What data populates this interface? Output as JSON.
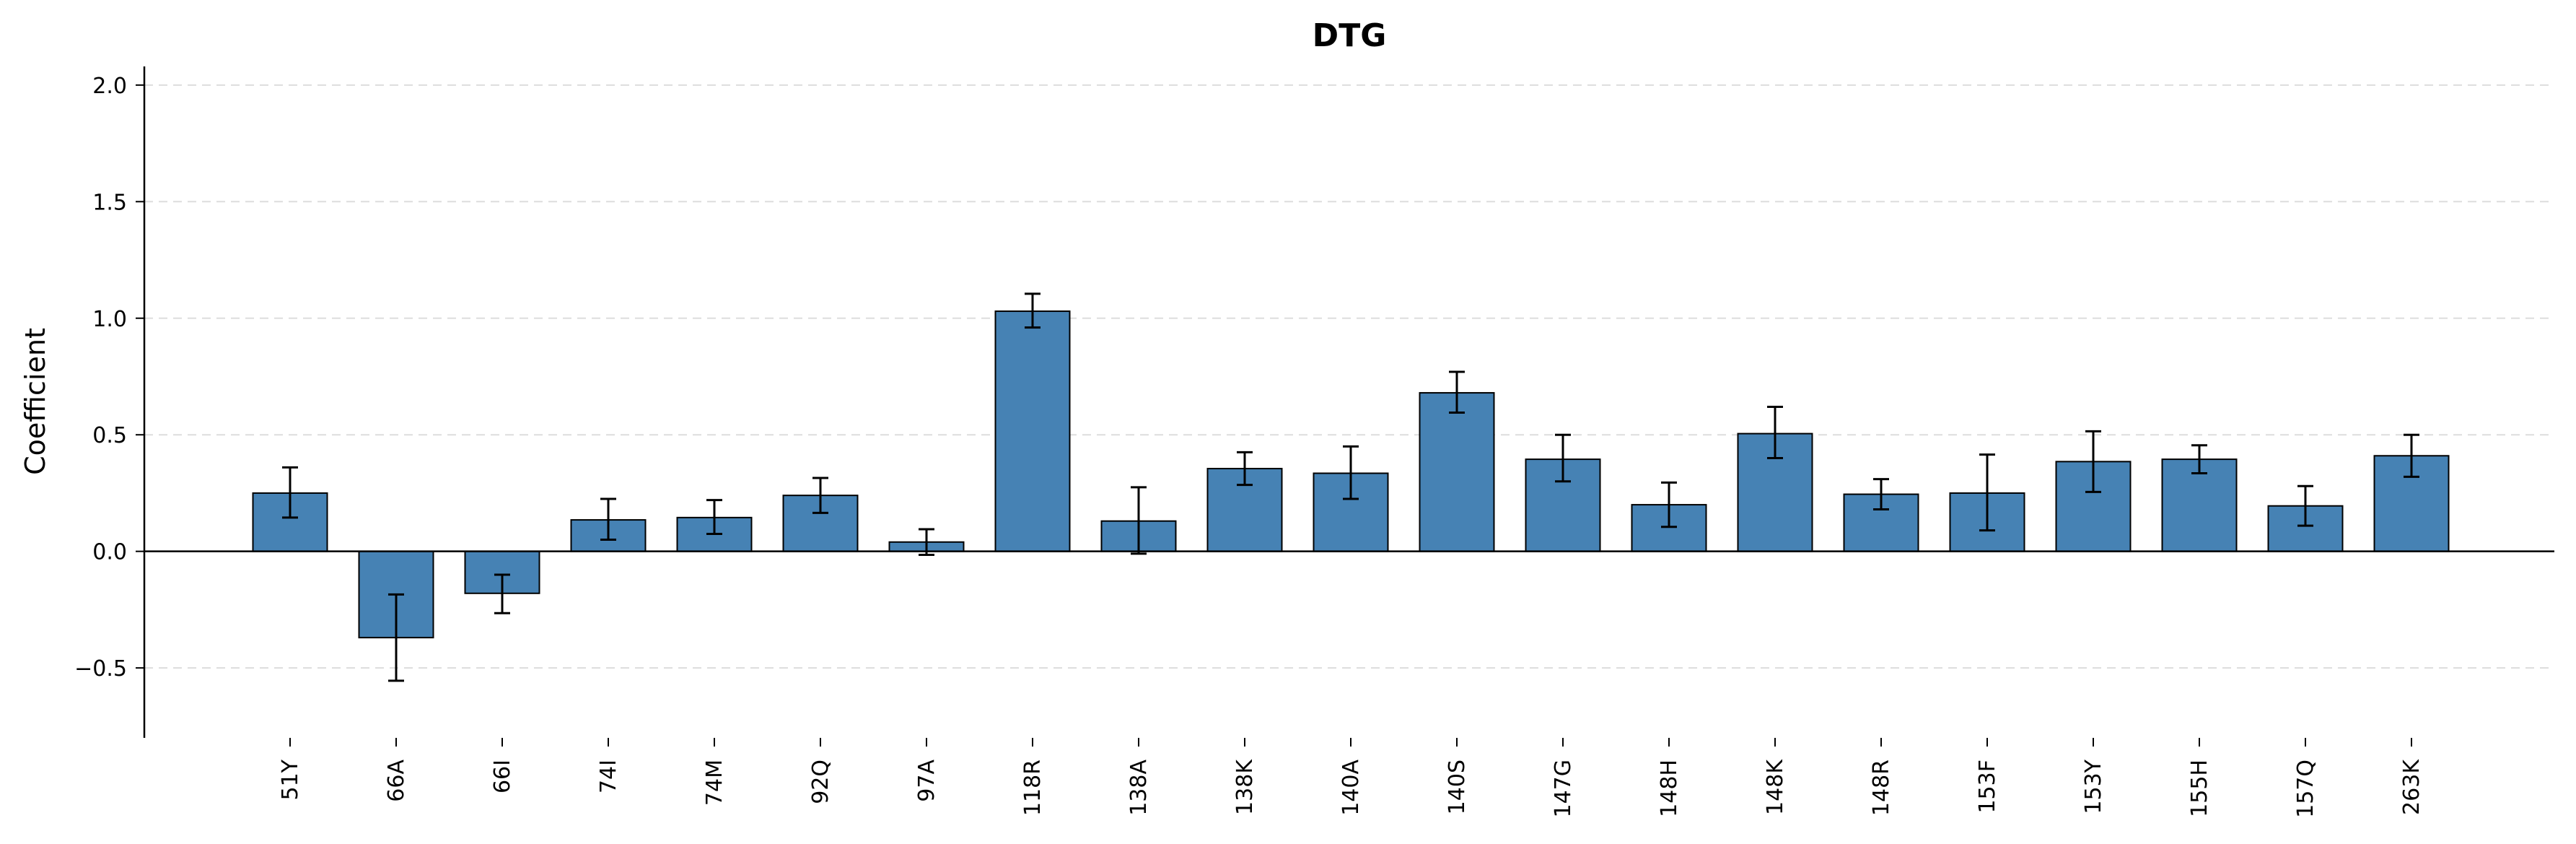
{
  "chart_data": {
    "type": "bar",
    "title": "DTG",
    "xlabel": "",
    "ylabel": "Coefficient",
    "ylim": [
      -0.8,
      2.08
    ],
    "yticks": [
      -0.5,
      0.0,
      0.5,
      1.0,
      1.5,
      2.0
    ],
    "ytick_labels": [
      "−0.5",
      "0.0",
      "0.5",
      "1.0",
      "1.5",
      "2.0"
    ],
    "grid": true,
    "legend": "none",
    "bar_color": "#4682b4",
    "categories": [
      "51Y",
      "66A",
      "66I",
      "74I",
      "74M",
      "92Q",
      "97A",
      "118R",
      "138A",
      "138K",
      "140A",
      "140S",
      "147G",
      "148H",
      "148K",
      "148R",
      "153F",
      "153Y",
      "155H",
      "157Q",
      "263K"
    ],
    "values": [
      0.25,
      -0.37,
      -0.18,
      0.135,
      0.145,
      0.24,
      0.04,
      1.03,
      0.13,
      0.355,
      0.335,
      0.68,
      0.395,
      0.2,
      0.505,
      0.245,
      0.25,
      0.385,
      0.395,
      0.195,
      0.41
    ],
    "error_low": [
      0.145,
      -0.555,
      -0.265,
      0.05,
      0.075,
      0.165,
      -0.015,
      0.96,
      -0.01,
      0.285,
      0.225,
      0.595,
      0.3,
      0.105,
      0.4,
      0.18,
      0.09,
      0.255,
      0.335,
      0.11,
      0.32
    ],
    "error_high": [
      0.36,
      -0.185,
      -0.1,
      0.225,
      0.22,
      0.315,
      0.095,
      1.105,
      0.275,
      0.425,
      0.45,
      0.77,
      0.5,
      0.295,
      0.62,
      0.31,
      0.415,
      0.515,
      0.455,
      0.28,
      0.5
    ]
  }
}
